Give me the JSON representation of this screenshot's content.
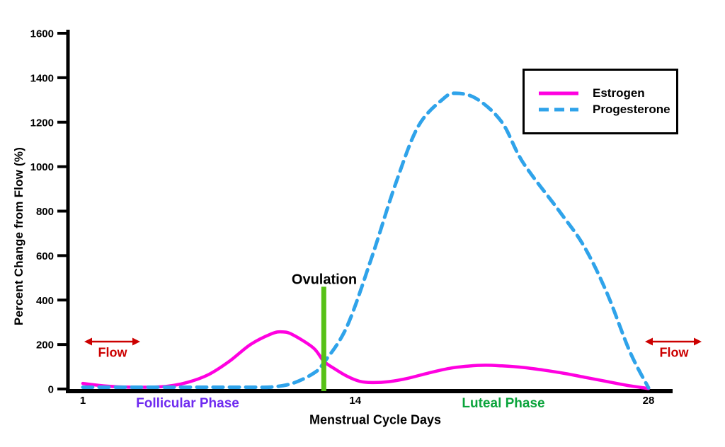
{
  "page": {
    "background": "#FFFFFF"
  },
  "chart_data": {
    "type": "line",
    "title": "",
    "xlabel": "Menstrual Cycle Days",
    "ylabel": "Percent Change from Flow (%)",
    "xlim": [
      1,
      28
    ],
    "ylim": [
      0,
      1600
    ],
    "x_ticks": [
      1,
      14,
      28
    ],
    "y_ticks": [
      0,
      200,
      400,
      600,
      800,
      1000,
      1200,
      1400,
      1600
    ],
    "grid": false,
    "axis_color": "#000000",
    "series": [
      {
        "name": "Estrogen",
        "color": "#FF00E0",
        "style": "solid",
        "points": [
          [
            1,
            25
          ],
          [
            2,
            14
          ],
          [
            3,
            9
          ],
          [
            4,
            8
          ],
          [
            5,
            12
          ],
          [
            6,
            30
          ],
          [
            7,
            65
          ],
          [
            8,
            125
          ],
          [
            9,
            200
          ],
          [
            10,
            248
          ],
          [
            10.5,
            257
          ],
          [
            11,
            245
          ],
          [
            12,
            185
          ],
          [
            12.5,
            125
          ],
          [
            13,
            92
          ],
          [
            13.6,
            58
          ],
          [
            14.2,
            35
          ],
          [
            14.8,
            29
          ],
          [
            15.6,
            33
          ],
          [
            16.5,
            48
          ],
          [
            17.5,
            72
          ],
          [
            18.5,
            93
          ],
          [
            19.4,
            103
          ],
          [
            20.2,
            107
          ],
          [
            21,
            104
          ],
          [
            22,
            97
          ],
          [
            23,
            85
          ],
          [
            24,
            70
          ],
          [
            25,
            52
          ],
          [
            26,
            34
          ],
          [
            27,
            16
          ],
          [
            28,
            2
          ]
        ]
      },
      {
        "name": "Progesterone",
        "color": "#2FA3EA",
        "style": "dashed",
        "points": [
          [
            1,
            8
          ],
          [
            3,
            8
          ],
          [
            5,
            8
          ],
          [
            7,
            8
          ],
          [
            9,
            8
          ],
          [
            10,
            9
          ],
          [
            11,
            25
          ],
          [
            12,
            70
          ],
          [
            12.5,
            118
          ],
          [
            13.6,
            280
          ],
          [
            14.8,
            595
          ],
          [
            15.9,
            915
          ],
          [
            17,
            1180
          ],
          [
            18.2,
            1305
          ],
          [
            18.8,
            1330
          ],
          [
            19.8,
            1305
          ],
          [
            21,
            1200
          ],
          [
            22,
            1020
          ],
          [
            23.7,
            805
          ],
          [
            24.9,
            645
          ],
          [
            26,
            435
          ],
          [
            27.1,
            170
          ],
          [
            28,
            5
          ]
        ]
      }
    ],
    "legend": {
      "position": "top-right",
      "items": [
        "Estrogen",
        "Progesterone"
      ]
    },
    "annotations": {
      "ovulation": {
        "label": "Ovulation",
        "day": 12.5,
        "bar_top_value": 460,
        "bar_color": "#57C117"
      },
      "flow_left": {
        "label": "Flow"
      },
      "flow_right": {
        "label": "Flow"
      },
      "flow_color": "#CC0000",
      "flow_arrow_icon": "double-headed-arrow",
      "phases": [
        {
          "label": "Follicular Phase",
          "color": "#6F2BF0",
          "day_range": [
            1,
            13
          ]
        },
        {
          "label": "Luteal Phase",
          "color": "#0BA43C",
          "day_range": [
            14,
            28
          ]
        }
      ]
    }
  }
}
